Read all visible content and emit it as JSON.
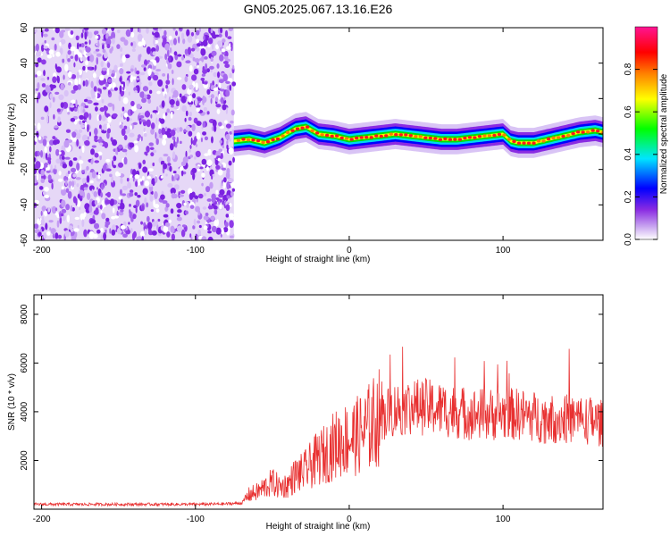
{
  "chart_data": [
    {
      "type": "heatmap",
      "title": "GN05.2025.067.13.16.E26",
      "xlabel": "Height of straight line (km)",
      "ylabel": "Frequency (Hz)",
      "xlim": [
        -205,
        165
      ],
      "ylim": [
        -60,
        60
      ],
      "xticks": [
        -200,
        -100,
        0,
        100
      ],
      "yticks": [
        -60,
        -40,
        -20,
        0,
        20,
        40,
        60
      ],
      "noise_region_x": [
        -205,
        -75
      ],
      "signal_region_x": [
        -75,
        165
      ],
      "ridge": {
        "x": [
          -75,
          -65,
          -55,
          -45,
          -35,
          -28,
          -20,
          -10,
          0,
          10,
          20,
          30,
          40,
          50,
          60,
          70,
          80,
          90,
          100,
          105,
          110,
          120,
          130,
          140,
          150,
          160,
          165
        ],
        "y": [
          -4,
          -3,
          -5,
          -2,
          3,
          4,
          0,
          -1,
          -3,
          -2,
          -1,
          0,
          -1,
          -2,
          -3,
          -3,
          -2,
          -1,
          0,
          -4,
          -5,
          -5,
          -3,
          -1,
          1,
          2,
          1
        ]
      },
      "colorbar": {
        "label": "Normalized spectral amplitude",
        "range": [
          0,
          1
        ],
        "ticks": [
          "0.0",
          "0.2",
          "0.4",
          "0.6",
          "0.8"
        ],
        "colors": [
          "#ffffff",
          "#8a2be2",
          "#0000ff",
          "#00e5ff",
          "#00ff00",
          "#ffff00",
          "#ff8000",
          "#ff0000",
          "#ff1493"
        ]
      },
      "grid": false
    },
    {
      "type": "line",
      "xlabel": "Height of straight line (km)",
      "ylabel": "SNR (10 * v/v)",
      "xlim": [
        -205,
        165
      ],
      "ylim": [
        0,
        8800
      ],
      "xticks": [
        -200,
        -100,
        0,
        100
      ],
      "yticks": [
        2000,
        4000,
        6000,
        8000
      ],
      "series": [
        {
          "color": "#e83030",
          "x": [
            -205,
            -180,
            -160,
            -140,
            -120,
            -100,
            -80,
            -70,
            -65,
            -60,
            -55,
            -50,
            -45,
            -40,
            -35,
            -30,
            -25,
            -20,
            -15,
            -10,
            -5,
            0,
            5,
            10,
            15,
            20,
            30,
            40,
            50,
            60,
            70,
            80,
            90,
            100,
            110,
            120,
            130,
            140,
            150,
            160,
            165
          ],
          "y": [
            200,
            200,
            200,
            200,
            200,
            200,
            220,
            250,
            600,
            700,
            900,
            1100,
            900,
            1000,
            1400,
            1500,
            1800,
            2100,
            2300,
            2600,
            2800,
            2900,
            3000,
            3200,
            3500,
            3800,
            4100,
            4200,
            4200,
            4100,
            4000,
            3900,
            3900,
            3900,
            3900,
            3800,
            3700,
            3700,
            3700,
            3600,
            3500
          ]
        }
      ],
      "grid": false
    }
  ]
}
